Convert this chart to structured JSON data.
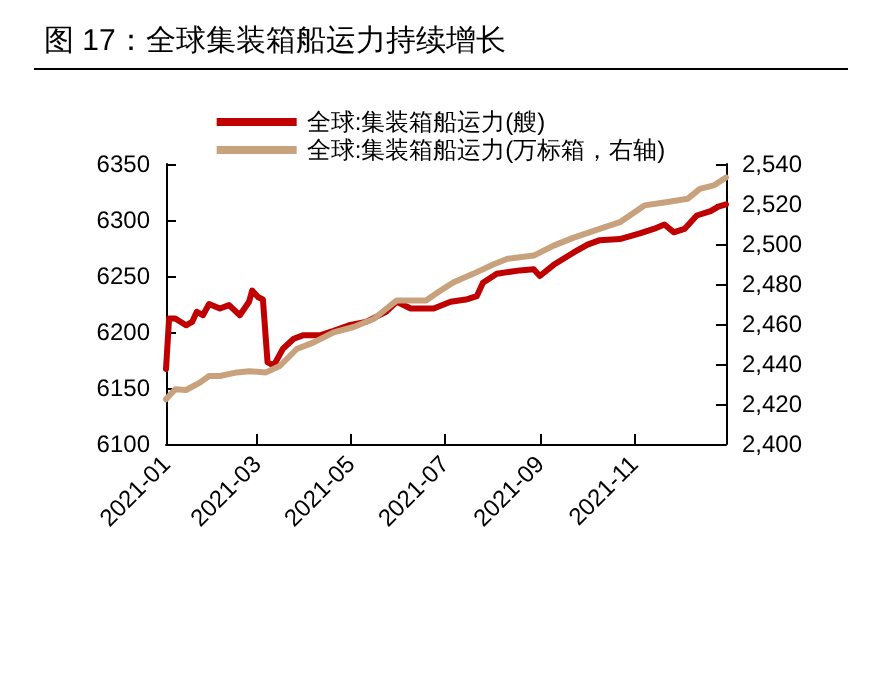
{
  "chart_data": {
    "type": "line",
    "title": "图 17：全球集装箱船运力持续增长",
    "legend": "top",
    "grid": false,
    "marker": "none",
    "line_style": "solid",
    "xlim": [
      "2021-01-01",
      "2021-12-31"
    ],
    "xticks": [
      "2021-01",
      "2021-03",
      "2021-05",
      "2021-07",
      "2021-09",
      "2021-11"
    ],
    "ylim": [
      6100,
      6350
    ],
    "yticks": [
      6100,
      6150,
      6200,
      6250,
      6300,
      6350
    ],
    "y2lim": [
      2400,
      2540
    ],
    "y2ticks": [
      {
        "value": 2400,
        "label": "2,400"
      },
      {
        "value": 2420,
        "label": "2,420"
      },
      {
        "value": 2440,
        "label": "2,440"
      },
      {
        "value": 2460,
        "label": "2,460"
      },
      {
        "value": 2480,
        "label": "2,480"
      },
      {
        "value": 2500,
        "label": "2,500"
      },
      {
        "value": 2520,
        "label": "2,520"
      },
      {
        "value": 2540,
        "label": "2,540"
      }
    ],
    "series": [
      {
        "name": "全球:集装箱船运力(艘)",
        "color": "#c00000",
        "x": [
          "2021-01-01",
          "2021-01-03",
          "2021-01-07",
          "2021-01-14",
          "2021-01-18",
          "2021-01-21",
          "2021-01-25",
          "2021-01-29",
          "2021-02-05",
          "2021-02-11",
          "2021-02-18",
          "2021-02-24",
          "2021-02-26",
          "2021-03-02",
          "2021-03-05",
          "2021-03-08",
          "2021-03-12",
          "2021-03-18",
          "2021-03-25",
          "2021-03-31",
          "2021-04-11",
          "2021-04-20",
          "2021-04-30",
          "2021-05-11",
          "2021-05-24",
          "2021-05-31",
          "2021-06-09",
          "2021-06-24",
          "2021-07-05",
          "2021-07-15",
          "2021-07-22",
          "2021-07-26",
          "2021-08-04",
          "2021-08-19",
          "2021-08-28",
          "2021-09-01",
          "2021-09-10",
          "2021-09-23",
          "2021-10-02",
          "2021-10-10",
          "2021-10-23",
          "2021-11-05",
          "2021-11-14",
          "2021-11-21",
          "2021-11-27",
          "2021-12-04",
          "2021-12-12",
          "2021-12-21",
          "2021-12-26",
          "2021-12-31"
        ],
        "values": [
          6167,
          6212,
          6212,
          6206,
          6209,
          6218,
          6215,
          6225,
          6221,
          6224,
          6215,
          6227,
          6237,
          6231,
          6229,
          6173,
          6170,
          6185,
          6194,
          6197,
          6197,
          6201,
          6206,
          6209,
          6218,
          6227,
          6221,
          6221,
          6227,
          6229,
          6232,
          6244,
          6252,
          6255,
          6256,
          6250,
          6260,
          6271,
          6278,
          6282,
          6283,
          6288,
          6292,
          6296,
          6289,
          6292,
          6304,
          6308,
          6312,
          6314
        ]
      },
      {
        "name": "全球:集装箱船运力(万标箱，右轴)",
        "color": "#c8a27c",
        "axis": "y2",
        "x": [
          "2021-01-01",
          "2021-01-07",
          "2021-01-14",
          "2021-01-23",
          "2021-01-29",
          "2021-02-05",
          "2021-02-16",
          "2021-02-24",
          "2021-03-07",
          "2021-03-16",
          "2021-03-27",
          "2021-04-07",
          "2021-04-20",
          "2021-05-03",
          "2021-05-16",
          "2021-05-24",
          "2021-05-31",
          "2021-06-19",
          "2021-06-28",
          "2021-07-07",
          "2021-07-20",
          "2021-08-02",
          "2021-08-11",
          "2021-08-28",
          "2021-09-10",
          "2021-09-23",
          "2021-10-06",
          "2021-10-23",
          "2021-11-08",
          "2021-11-23",
          "2021-12-06",
          "2021-12-14",
          "2021-12-23",
          "2021-12-31"
        ],
        "values": [
          2422.4,
          2427.4,
          2427,
          2430.7,
          2434,
          2434,
          2435.8,
          2436.4,
          2435.8,
          2439,
          2447.5,
          2450.8,
          2455.8,
          2458.5,
          2462.5,
          2467.5,
          2471.8,
          2471.8,
          2476.5,
          2480.9,
          2485.2,
          2489.9,
          2492.6,
          2494.2,
          2499.2,
          2503.2,
          2506.6,
          2510.9,
          2519.3,
          2521,
          2522.6,
          2527.6,
          2529.3,
          2533.3
        ]
      }
    ]
  }
}
